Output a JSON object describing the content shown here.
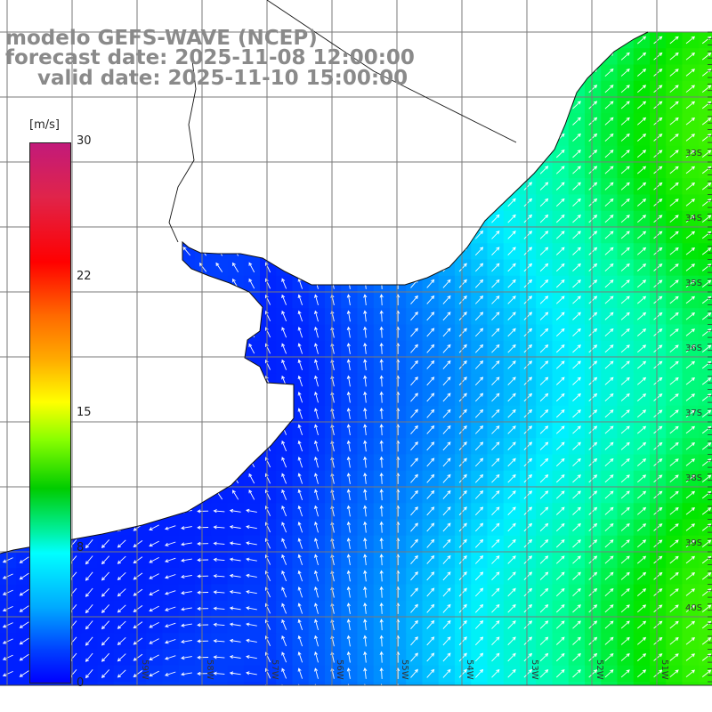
{
  "title": {
    "line1": "modelo GEFS-WAVE (NCEP)",
    "line2": "forecast date: 2025-11-08 12:00:00",
    "line3": "valid date: 2025-11-10 15:00:00"
  },
  "colorbar": {
    "unit": "[m/s]",
    "ticks": [
      "30",
      "22",
      "15",
      "8",
      "0"
    ],
    "tick_values": [
      30,
      22,
      15,
      8,
      0
    ],
    "range": [
      0,
      30
    ]
  },
  "axes": {
    "lon_labels": [
      "59W",
      "58W",
      "57W",
      "56W",
      "55W",
      "54W",
      "53W",
      "52W",
      "51W"
    ],
    "lat_labels": [
      "33S",
      "34S",
      "35S",
      "36S",
      "37S",
      "38S",
      "39S",
      "40S"
    ]
  },
  "colors": {
    "grid": "#7a7a7a",
    "coast": "#111111",
    "land": "#ffffff",
    "title": "#8a8a8a",
    "low_wind": "#0000ff",
    "mid_wind": "#00ffff",
    "high_wind": "#00ff00"
  },
  "field": {
    "description_units": "m/s",
    "min_shown": 3,
    "max_shown": 12
  }
}
